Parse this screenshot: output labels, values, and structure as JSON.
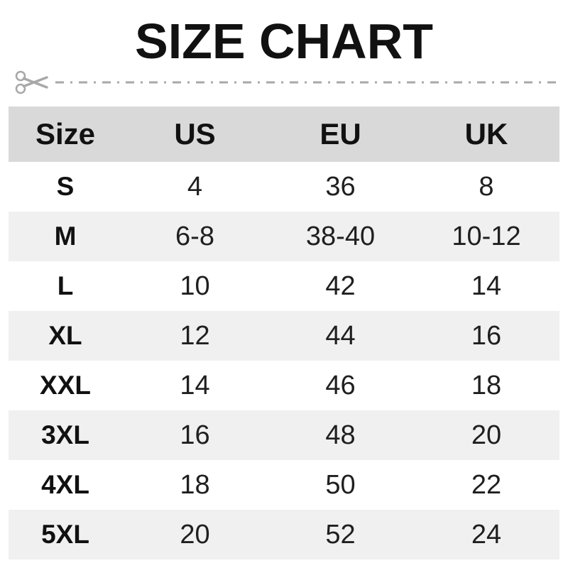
{
  "title": "SIZE CHART",
  "cut_line": {
    "icon": "scissors"
  },
  "chart_data": {
    "type": "table",
    "title": "SIZE CHART",
    "columns": [
      "Size",
      "US",
      "EU",
      "UK"
    ],
    "rows": [
      [
        "S",
        "4",
        "36",
        "8"
      ],
      [
        "M",
        "6-8",
        "38-40",
        "10-12"
      ],
      [
        "L",
        "10",
        "42",
        "14"
      ],
      [
        "XL",
        "12",
        "44",
        "16"
      ],
      [
        "XXL",
        "14",
        "46",
        "18"
      ],
      [
        "3XL",
        "16",
        "48",
        "20"
      ],
      [
        "4XL",
        "18",
        "50",
        "22"
      ],
      [
        "5XL",
        "20",
        "52",
        "24"
      ]
    ]
  },
  "colors": {
    "page_bg": "#ffffff",
    "header_bg": "#d9d9d9",
    "row_alt_bg": "#f0f0f0",
    "title_text": "#111111",
    "cell_text": "#1f1f1f",
    "cut_line": "#a8a8a8"
  }
}
